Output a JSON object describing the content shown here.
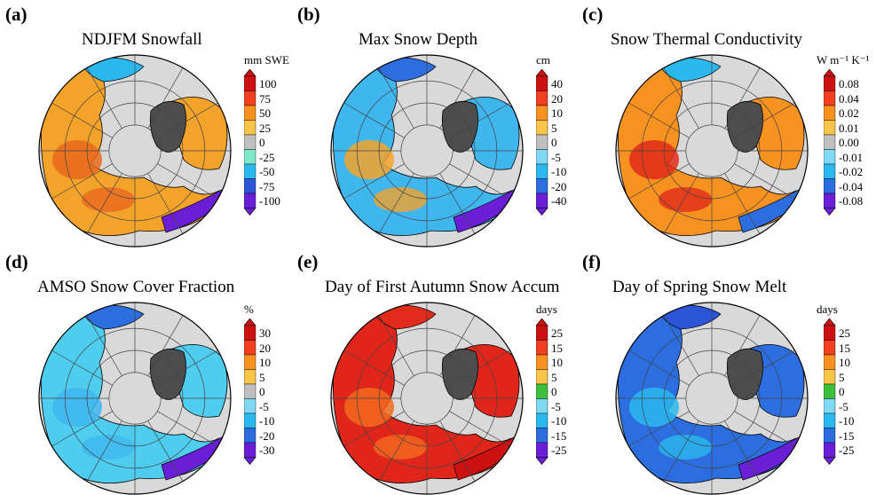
{
  "panels": [
    {
      "letter": "(a)",
      "title": "NDJFM Snowfall",
      "unit": "mm SWE",
      "ticks": [
        "100",
        "75",
        "50",
        "25",
        "0",
        "-25",
        "-50",
        "-75",
        "-100"
      ],
      "colors": [
        "#cc1111",
        "#f04020",
        "#f7911f",
        "#f9c44a",
        "#bfbfbf",
        "#7fe8c8",
        "#2bb8ee",
        "#2c55d8",
        "#6a1fd6"
      ],
      "land_fill": "#f4a32a",
      "land_secondary": "#e8681f",
      "ocean_patch": "#2bb8ee",
      "pacific_patch": "#6a1fd6"
    },
    {
      "letter": "(b)",
      "title": "Max Snow Depth",
      "unit": "cm",
      "ticks": [
        "40",
        "20",
        "10",
        "5",
        "0",
        "-5",
        "-10",
        "-20",
        "-40"
      ],
      "colors": [
        "#cc1111",
        "#f04020",
        "#f7911f",
        "#f9c44a",
        "#bfbfbf",
        "#7fd9f3",
        "#2bb8ee",
        "#2c6ee0",
        "#6a1fd6"
      ],
      "land_fill": "#3fb6ee",
      "land_secondary": "#f4a32a",
      "ocean_patch": "#2c6ee0",
      "pacific_patch": "#6a1fd6"
    },
    {
      "letter": "(c)",
      "title": "Snow Thermal Conductivity",
      "unit": "W m⁻¹ K⁻¹",
      "ticks": [
        "0.08",
        "0.04",
        "0.02",
        "0.01",
        "0.00",
        "-0.01",
        "-0.02",
        "-0.04",
        "-0.08"
      ],
      "colors": [
        "#cc1111",
        "#f04020",
        "#f7911f",
        "#f9c44a",
        "#bfbfbf",
        "#7fd9f3",
        "#2bb8ee",
        "#2c6ee0",
        "#6a1fd6"
      ],
      "land_fill": "#f7911f",
      "land_secondary": "#e02a1a",
      "ocean_patch": "#2bb8ee",
      "pacific_patch": "#2c6ee0"
    },
    {
      "letter": "(d)",
      "title": "AMSO Snow Cover Fraction",
      "unit": "%",
      "ticks": [
        "30",
        "20",
        "10",
        "5",
        "0",
        "-5",
        "-10",
        "-20",
        "-30"
      ],
      "colors": [
        "#cc1111",
        "#f04020",
        "#f7911f",
        "#f9c44a",
        "#bfbfbf",
        "#7fd9f3",
        "#2bb8ee",
        "#2c6ee0",
        "#6a1fd6"
      ],
      "land_fill": "#4fcdee",
      "land_secondary": "#3fb6ee",
      "ocean_patch": "#2c6ee0",
      "pacific_patch": "#6a1fd6"
    },
    {
      "letter": "(e)",
      "title": "Day of First Autumn Snow Accum",
      "unit": "days",
      "ticks": [
        "25",
        "15",
        "10",
        "5",
        "0",
        "-5",
        "-10",
        "-15",
        "-25"
      ],
      "colors": [
        "#cc1111",
        "#f04020",
        "#f7911f",
        "#f9c44a",
        "#3cc03c",
        "#7fd9f3",
        "#2bb8ee",
        "#2c6ee0",
        "#6a1fd6"
      ],
      "land_fill": "#e0261a",
      "land_secondary": "#f26a1f",
      "ocean_patch": "#e02a1a",
      "pacific_patch": "#cc1111"
    },
    {
      "letter": "(f)",
      "title": "Day of Spring Snow Melt",
      "unit": "days",
      "ticks": [
        "25",
        "15",
        "10",
        "5",
        "0",
        "-5",
        "-10",
        "-15",
        "-25"
      ],
      "colors": [
        "#cc1111",
        "#f04020",
        "#f7911f",
        "#f9c44a",
        "#3cc03c",
        "#7fd9f3",
        "#2bb8ee",
        "#2c6ee0",
        "#6a1fd6"
      ],
      "land_fill": "#2c6ee0",
      "land_secondary": "#2bb8ee",
      "ocean_patch": "#2c55d8",
      "pacific_patch": "#6a1fd6"
    }
  ],
  "map_colors": {
    "disc_background": "#d9d9d9",
    "greenland": "#4d4d4d",
    "graticule": "#444444",
    "coast": "#000000"
  }
}
